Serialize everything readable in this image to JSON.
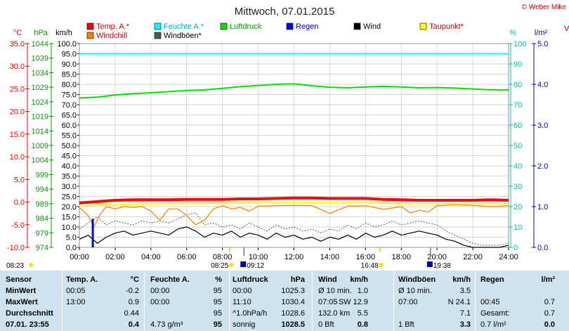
{
  "chart_data": {
    "type": "line",
    "title": "Mittwoch, 07.01.2015",
    "credit": "© Weber Mike",
    "legend": [
      {
        "label": "Temp. A.*",
        "color": "#ff0000"
      },
      {
        "label": "Feuchte A.*",
        "color": "#00ffff"
      },
      {
        "label": "Luftdruck",
        "color": "#00e000"
      },
      {
        "label": "Regen",
        "color": "#0000ff"
      },
      {
        "label": "Wind",
        "color": "#000000"
      },
      {
        "label": "Taupunkt*",
        "color": "#ffff00"
      },
      {
        "label": "Windchill",
        "color": "#ff8000"
      },
      {
        "label": "Windböen*",
        "color": "#406060"
      }
    ],
    "axes": {
      "temp": {
        "unit": "°C",
        "color": "#ff0000",
        "range": [
          -10,
          35
        ],
        "ticks": [
          "35.0",
          "30.0",
          "25.0",
          "20.0",
          "15.0",
          "10.0",
          "5.0",
          "0.0",
          "-5.0",
          "-10.0"
        ]
      },
      "pressure": {
        "unit": "hPa",
        "color": "#00a000",
        "range": [
          974,
          1044
        ],
        "ticks": [
          "1044",
          "1039",
          "1034",
          "1029",
          "1024",
          "1019",
          "1014",
          "1009",
          "1004",
          "999",
          "994",
          "989",
          "984",
          "979",
          "974"
        ]
      },
      "wind": {
        "unit": "km/h",
        "color": "#000000",
        "range": [
          0,
          100
        ],
        "ticks": [
          "100.0",
          "95.0",
          "90.0",
          "85.0",
          "80.0",
          "75.0",
          "70.0",
          "65.0",
          "60.0",
          "55.0",
          "50.0",
          "45.0",
          "40.0",
          "35.0",
          "30.0",
          "25.0",
          "20.0",
          "15.0",
          "10.0",
          "5.0",
          "0.0"
        ]
      },
      "humidity": {
        "unit": "%",
        "color": "#00c0c0",
        "range": [
          0,
          100
        ],
        "ticks": [
          "100",
          "90",
          "80",
          "70",
          "60",
          "50",
          "40",
          "30",
          "20",
          "10",
          "0"
        ]
      },
      "rain": {
        "unit": "l/m²",
        "color": "#0000cc",
        "range": [
          0,
          5
        ],
        "ticks": [
          "5.0",
          "4.0",
          "3.0",
          "2.0",
          "1.0",
          "0.0"
        ]
      }
    },
    "x_ticks": [
      "00:00",
      "02:00",
      "04:00",
      "06:00",
      "08:00",
      "10:00",
      "12:00",
      "14:00",
      "16:00",
      "18:00",
      "20:00",
      "22:00",
      "24:00"
    ],
    "sun_marks": [
      {
        "time": "08:23",
        "type": "sunrise"
      },
      {
        "time": "08:25",
        "type": "sunrise"
      },
      {
        "time": "16:48",
        "type": "sunset"
      },
      {
        "time": "09:12",
        "type": "moon"
      },
      {
        "time": "19:38",
        "type": "moon"
      }
    ],
    "series": [
      {
        "name": "Luftdruck",
        "axis": "pressure",
        "color": "#00e000",
        "x": [
          0,
          1,
          2,
          3,
          4,
          5,
          6,
          7,
          8,
          9,
          10,
          11,
          12,
          13,
          14,
          15,
          16,
          17,
          18,
          19,
          20,
          21,
          22,
          23,
          24
        ],
        "values": [
          1025.3,
          1025.6,
          1026.3,
          1026.8,
          1027.1,
          1027.5,
          1027.9,
          1028.1,
          1028.6,
          1029.2,
          1029.6,
          1030.0,
          1030.2,
          1029.5,
          1029.0,
          1028.8,
          1029.1,
          1029.3,
          1029.1,
          1028.8,
          1028.9,
          1028.7,
          1028.4,
          1028.1,
          1028.1
        ]
      },
      {
        "name": "Feuchte A.*",
        "axis": "humidity",
        "color": "#00ffff",
        "x": [
          0,
          24
        ],
        "values": [
          95,
          95
        ]
      },
      {
        "name": "Temp. A.*",
        "axis": "temp",
        "color": "#ff0000",
        "x": [
          0,
          1,
          2,
          3,
          4,
          5,
          6,
          7,
          8,
          9,
          10,
          11,
          12,
          13,
          14,
          15,
          16,
          17,
          18,
          19,
          20,
          21,
          22,
          23,
          24
        ],
        "values": [
          -0.2,
          0.1,
          0.4,
          0.5,
          0.5,
          0.5,
          0.6,
          0.6,
          0.6,
          0.7,
          0.7,
          0.8,
          0.9,
          0.9,
          0.8,
          0.8,
          0.8,
          0.6,
          0.5,
          0.4,
          0.4,
          0.4,
          0.4,
          0.5,
          0.4
        ]
      },
      {
        "name": "Taupunkt*",
        "axis": "temp",
        "color": "#ffff00",
        "x": [
          0,
          2,
          4,
          6,
          8,
          10,
          12,
          14,
          16,
          18,
          20,
          22,
          24
        ],
        "values": [
          -0.8,
          -0.6,
          -0.4,
          -0.3,
          -0.3,
          -0.2,
          -0.1,
          -0.1,
          -0.2,
          -0.4,
          -0.4,
          -0.3,
          -0.4
        ]
      },
      {
        "name": "Windchill",
        "axis": "temp",
        "color": "#ff8000",
        "x": [
          0,
          0.5,
          0.8,
          1.2,
          1.5,
          2,
          2.5,
          3,
          3.5,
          4,
          4.5,
          5,
          5.5,
          6,
          6.5,
          7,
          7.5,
          8,
          8.5,
          9,
          9.5,
          10,
          11,
          12,
          13,
          14,
          15,
          16,
          17,
          18,
          18.5,
          19,
          19.5,
          20,
          21,
          22,
          23,
          24
        ],
        "values": [
          -1.2,
          -3,
          -5.5,
          -2.5,
          -1,
          -1.5,
          -1,
          -1.2,
          -1,
          -2,
          -4,
          -1.5,
          -1.5,
          -3,
          -5,
          -4,
          -1.5,
          -0.8,
          -1.5,
          -1.2,
          -2,
          -0.9,
          -0.8,
          -0.7,
          -0.8,
          -2.5,
          -0.9,
          -0.8,
          -1.6,
          -1,
          -2.4,
          -1.8,
          -2.2,
          -0.8,
          -0.6,
          -0.7,
          -1,
          -0.8
        ]
      },
      {
        "name": "Wind",
        "axis": "wind",
        "color": "#000000",
        "x": [
          0,
          0.5,
          1,
          1.5,
          2,
          2.5,
          3,
          3.5,
          4,
          4.5,
          5,
          5.5,
          6,
          6.5,
          7,
          7.5,
          8,
          8.5,
          9,
          9.5,
          10,
          10.5,
          11,
          11.5,
          12,
          12.5,
          13,
          13.5,
          14,
          14.5,
          15,
          15.5,
          16,
          16.5,
          17,
          17.5,
          18,
          18.5,
          19,
          19.5,
          20,
          20.5,
          21,
          21.5,
          22,
          22.5,
          23,
          23.5,
          24
        ],
        "values": [
          4,
          6,
          2,
          5,
          7,
          8,
          6,
          7,
          8,
          7,
          6,
          9,
          10,
          8,
          5,
          7,
          6,
          8,
          5,
          7,
          6,
          4,
          7,
          5,
          6,
          4,
          5,
          3,
          5,
          4,
          6,
          4,
          7,
          5,
          6,
          8,
          6,
          7,
          8,
          7,
          6,
          4,
          3,
          1,
          0,
          0,
          0,
          0,
          1
        ]
      },
      {
        "name": "Windböen*",
        "axis": "wind",
        "color": "#406060",
        "x": [
          0,
          0.5,
          1,
          1.5,
          2,
          2.5,
          3,
          3.5,
          4,
          4.5,
          5,
          5.5,
          6,
          6.5,
          7,
          7.5,
          8,
          8.5,
          9,
          9.5,
          10,
          10.5,
          11,
          11.5,
          12,
          12.5,
          13,
          13.5,
          14,
          14.5,
          15,
          15.5,
          16,
          16.5,
          17,
          17.5,
          18,
          18.5,
          19,
          19.5,
          20,
          20.5,
          21,
          21.5,
          22,
          22.5,
          23,
          23.5,
          24
        ],
        "values": [
          9,
          12,
          15,
          11,
          13,
          12,
          11,
          13,
          12,
          13,
          12,
          14,
          16,
          17,
          11,
          12,
          10,
          11,
          9,
          12,
          10,
          8,
          11,
          9,
          10,
          8,
          9,
          7,
          9,
          8,
          11,
          9,
          12,
          10,
          11,
          13,
          11,
          12,
          13,
          12,
          11,
          8,
          6,
          4,
          2,
          1,
          1,
          1,
          2
        ]
      },
      {
        "name": "Regen",
        "axis": "rain",
        "color": "#0000ff",
        "type": "bar",
        "x": [
          0.75
        ],
        "values": [
          0.7
        ]
      }
    ]
  },
  "table": {
    "headers": [
      "Sensor",
      "Temp. A.",
      "°C",
      "Feuchte A.",
      "%",
      "Luftdruck",
      "hPa",
      "Wind",
      "km/h",
      "Windböen",
      "km/h",
      "Regen",
      "l/m²"
    ],
    "rows": [
      [
        "MinWert",
        "00:05",
        "-0.2",
        "00:00",
        "95",
        "00:00",
        "1025.3",
        "Ø 10 min.",
        "1.0",
        "Ø 10 min.",
        "3.5",
        "",
        ""
      ],
      [
        "MaxWert",
        "13:00",
        "0.9",
        "00:00",
        "95",
        "11:10",
        "1030.4",
        "07:05",
        "SW 12.9",
        "07:00",
        "N 24.1",
        "00:45",
        "0.7"
      ],
      [
        "Durchschnitt",
        "",
        "0.44",
        "",
        "95",
        "^1.0hPa/h",
        "1028.6",
        "132.0 km",
        "5.5",
        "",
        "7.1",
        "Gesamt:",
        "0.7"
      ],
      [
        "07.01. 23:55",
        "",
        "0.4",
        "4.73 g/m³",
        "95",
        "sonnig",
        "1028.5",
        "0 Bft",
        "0.8",
        "1 Bft",
        "3.3",
        "0.7 l/m²",
        "0.0"
      ]
    ]
  }
}
